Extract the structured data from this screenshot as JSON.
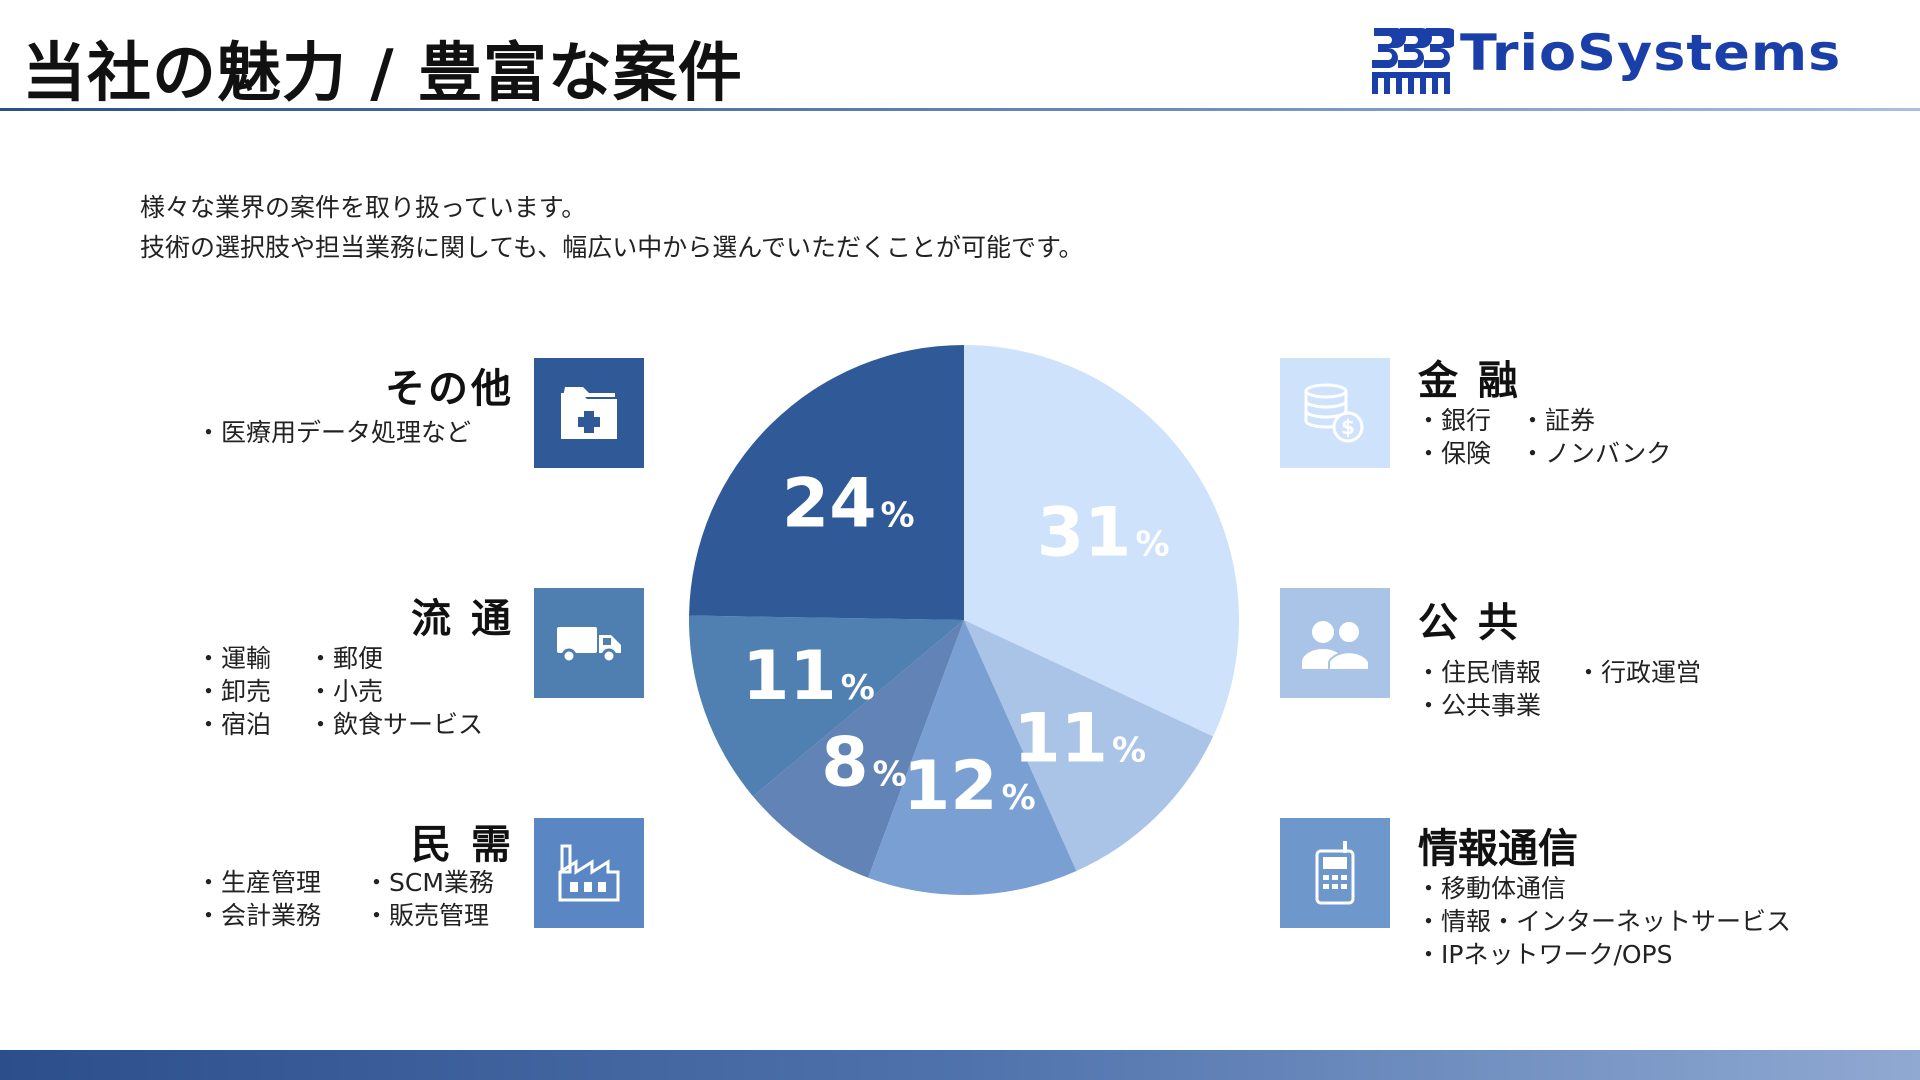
{
  "page": {
    "title": "当社の魅力 / 豊富な案件",
    "logo_text": "TrioSystems",
    "intro": [
      "様々な業界の案件を取り扱っています。",
      "技術の選択肢や担当業務に関しても、幅広い中から選んでいただくことが可能です。"
    ]
  },
  "categories": {
    "other": {
      "title": "その他",
      "items": [
        [
          "・医療用データ処理など"
        ]
      ],
      "icon": "medical-folder-icon",
      "color": "#2f5a97"
    },
    "distribution": {
      "title": "流 通",
      "items": [
        [
          "・運輸",
          "・郵便"
        ],
        [
          "・卸売",
          "・小売"
        ],
        [
          "・宿泊",
          "・飲食サービス"
        ]
      ],
      "icon": "truck-icon",
      "color": "#4f7fb0"
    },
    "private": {
      "title": "民 需",
      "items": [
        [
          "・生産管理",
          "・SCM業務"
        ],
        [
          "・会計業務",
          "・販売管理"
        ]
      ],
      "icon": "factory-icon",
      "color": "#5b86c4"
    },
    "finance": {
      "title": "金 融",
      "items": [
        [
          "・銀行",
          "・証券"
        ],
        [
          "・保険",
          "・ノンバンク"
        ]
      ],
      "icon": "coins-icon",
      "color": "#cfe2fb"
    },
    "public": {
      "title": "公 共",
      "items": [
        [
          "・住民情報",
          "・行政運営"
        ],
        [
          "・公共事業"
        ]
      ],
      "icon": "people-icon",
      "color": "#a9c4e6"
    },
    "telecom": {
      "title": "情報通信",
      "items": [
        [
          "・移動体通信"
        ],
        [
          "・情報・インターネットサービス"
        ],
        [
          "・IPネットワーク/OPS"
        ]
      ],
      "icon": "phone-icon",
      "color": "#6e97cc"
    }
  },
  "chart_data": {
    "type": "pie",
    "unit": "%",
    "start": "12 o'clock, clockwise",
    "slices": [
      {
        "category": "finance",
        "value": 31,
        "color": "#cfe2fb"
      },
      {
        "category": "public",
        "value": 11,
        "color": "#a9c4e6"
      },
      {
        "category": "private",
        "value": 12,
        "color": "#7aa0d3"
      },
      {
        "category": "telecom",
        "value": 8,
        "color": "#6283b6"
      },
      {
        "category": "distribution",
        "value": 11,
        "color": "#4f80b1"
      },
      {
        "category": "other",
        "value": 24,
        "color": "#2f5a97"
      }
    ]
  }
}
